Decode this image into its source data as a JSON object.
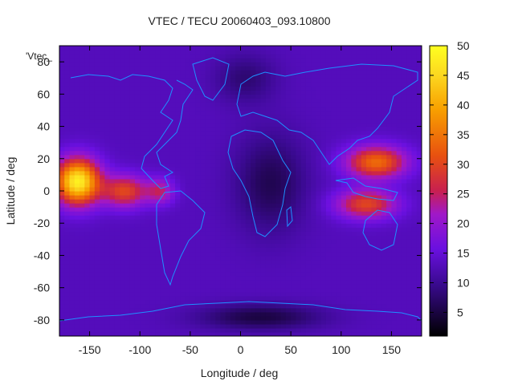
{
  "chart_data": {
    "type": "heatmap",
    "title": "VTEC / TECU 20060403_093.10800",
    "xlabel": "Longitude / deg",
    "ylabel": "Latitude / deg",
    "series_key": "'Vtec_",
    "xlim": [
      -180,
      180
    ],
    "ylim": [
      -90,
      90
    ],
    "x_ticks": [
      -150,
      -100,
      -50,
      0,
      50,
      100,
      150
    ],
    "y_ticks": [
      -80,
      -60,
      -40,
      -20,
      0,
      20,
      40,
      60,
      80
    ],
    "colorbar": {
      "range": [
        1,
        50
      ],
      "ticks": [
        5,
        10,
        15,
        20,
        25,
        30,
        35,
        40,
        45,
        50
      ]
    },
    "grid": false,
    "overlay": "coastlines",
    "field": {
      "background": 13,
      "peaks": [
        {
          "lon": -162,
          "lat": 6,
          "value": 48,
          "spread_lon": 22,
          "spread_lat": 14
        },
        {
          "lon": -115,
          "lat": 0,
          "value": 30,
          "spread_lon": 22,
          "spread_lat": 10
        },
        {
          "lon": -80,
          "lat": 0,
          "value": 24,
          "spread_lon": 14,
          "spread_lat": 8
        },
        {
          "lon": 135,
          "lat": 18,
          "value": 34,
          "spread_lon": 30,
          "spread_lat": 10
        },
        {
          "lon": 125,
          "lat": -8,
          "value": 30,
          "spread_lon": 30,
          "spread_lat": 9
        }
      ],
      "lows": [
        {
          "lon": 30,
          "lat": 5,
          "value": 6,
          "spread_lon": 35,
          "spread_lat": 30
        },
        {
          "lon": 20,
          "lat": -78,
          "value": 5,
          "spread_lon": 60,
          "spread_lat": 8
        },
        {
          "lon": 5,
          "lat": 70,
          "value": 8,
          "spread_lon": 30,
          "spread_lat": 15
        }
      ]
    }
  }
}
